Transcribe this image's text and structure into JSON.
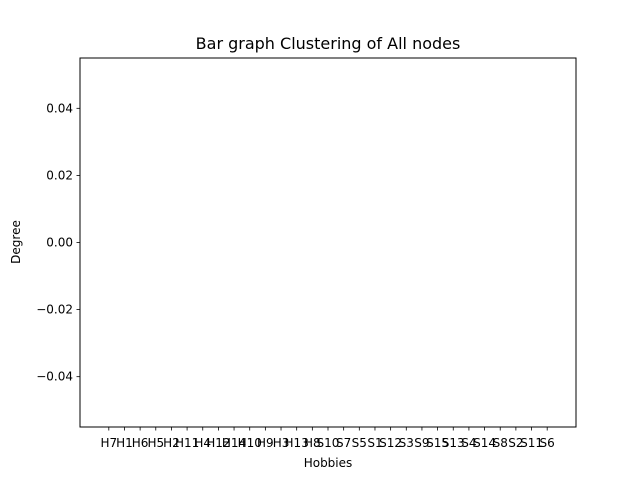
{
  "chart_data": {
    "type": "bar",
    "title": "Bar graph Clustering of All nodes",
    "xlabel": "Hobbies",
    "ylabel": "Degree",
    "categories": [
      "H7",
      "H1",
      "H6",
      "H5",
      "H2",
      "H11",
      "H4",
      "H12",
      "H14",
      "H10",
      "H9",
      "H3",
      "H13",
      "H8",
      "S10",
      "S7",
      "S5",
      "S1",
      "S12",
      "S3",
      "S9",
      "S15",
      "S13",
      "S4",
      "S14",
      "S8",
      "S2",
      "S11",
      "S6"
    ],
    "values": [
      0,
      0,
      0,
      0,
      0,
      0,
      0,
      0,
      0,
      0,
      0,
      0,
      0,
      0,
      0,
      0,
      0,
      0,
      0,
      0,
      0,
      0,
      0,
      0,
      0,
      0,
      0,
      0,
      0
    ],
    "ylim": [
      -0.055,
      0.055
    ],
    "yticks": [
      -0.04,
      -0.02,
      0.0,
      0.02,
      0.04
    ],
    "ytick_labels": [
      "−0.04",
      "−0.02",
      "0.00",
      "0.02",
      "0.04"
    ],
    "grid": false,
    "bar_color": "#1f77b4"
  }
}
